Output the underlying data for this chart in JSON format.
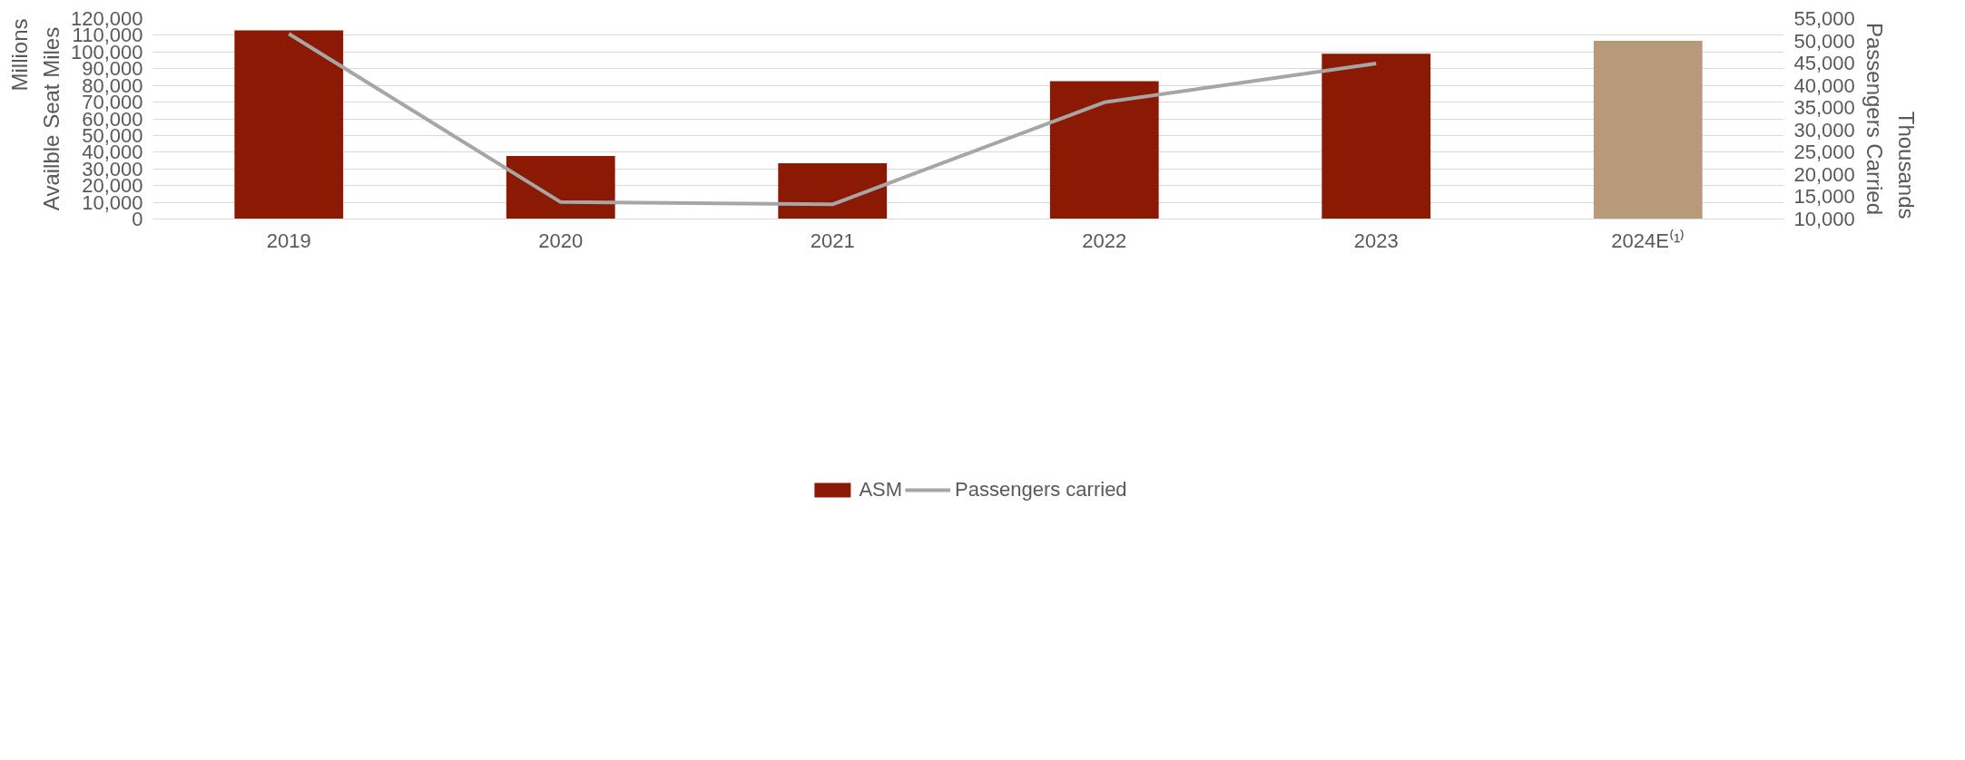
{
  "chart_data": {
    "type": "bar",
    "categories": [
      "2019",
      "2020",
      "2021",
      "2022",
      "2023",
      "2024E⁽¹⁾"
    ],
    "series": [
      {
        "name": "ASM",
        "colors": [
          "#8b1a04",
          "#8b1a04",
          "#8b1a04",
          "#8b1a04",
          "#8b1a04",
          "#b89a7a"
        ],
        "values": [
          112900,
          37700,
          33400,
          82500,
          98900,
          106700
        ]
      },
      {
        "name": "Passengers carried",
        "type": "line",
        "axis": "y2",
        "color": "#a6a6a6",
        "values": [
          51600,
          13800,
          13300,
          36200,
          44900,
          null
        ]
      }
    ],
    "ylabel": "Availble Seat Miles",
    "y2label": "Passengers Carried",
    "annotations": [
      "Millions",
      "Thousands"
    ],
    "ylim": [
      0,
      120000
    ],
    "yticks": [
      0,
      {
        "value": 10000,
        "label": "10,000"
      },
      {
        "value": 20000,
        "label": "20,000"
      },
      {
        "value": 30000,
        "label": "30,000"
      },
      {
        "value": 40000,
        "label": "40,000"
      },
      {
        "value": 50000,
        "label": "50,000"
      },
      {
        "value": 60000,
        "label": "60,000"
      },
      {
        "value": 70000,
        "label": "70,000"
      },
      {
        "value": 80000,
        "label": "80,000"
      },
      {
        "value": 90000,
        "label": "90,000"
      },
      {
        "value": 100000,
        "label": "100,000"
      },
      {
        "value": 110000,
        "label": "110,000"
      },
      {
        "value": 120000,
        "label": "120,000"
      }
    ],
    "y2lim": [
      10000,
      55000
    ],
    "y2ticks": [
      {
        "value": 10000,
        "label": "10,000"
      },
      {
        "value": 15000,
        "label": "15,000"
      },
      {
        "value": 20000,
        "label": "20,000"
      },
      {
        "value": 25000,
        "label": "25,000"
      },
      {
        "value": 30000,
        "label": "30,000"
      },
      {
        "value": 35000,
        "label": "35,000"
      },
      {
        "value": 40000,
        "label": "40,000"
      },
      {
        "value": 45000,
        "label": "45,000"
      },
      {
        "value": 50000,
        "label": "50,000"
      },
      {
        "value": 55000,
        "label": "55,000"
      }
    ],
    "grid": "y",
    "legend": "bottom",
    "marker": "none",
    "line_style": "solid"
  }
}
